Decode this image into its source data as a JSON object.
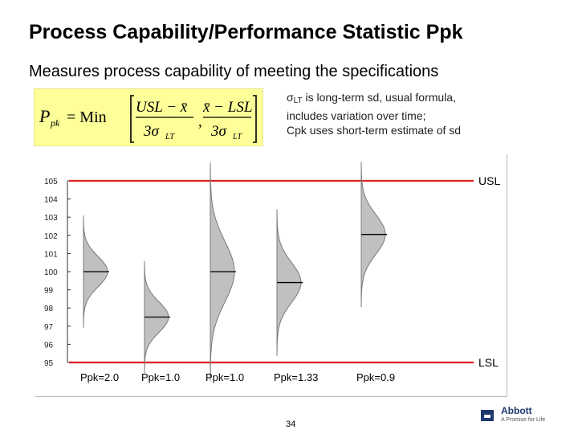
{
  "slide": {
    "title": "Process Capability/Performance Statistic Ppk",
    "subtitle": "Measures process capability of meeting the specifications",
    "note": {
      "line1_sigma": "σ",
      "line1_sub": "LT",
      "line1_rest": " is long-term sd, usual formula,",
      "line2": "includes variation over time;",
      "line3": "Cpk uses short-term estimate of sd"
    },
    "formula": {
      "lhs": "P",
      "lhs_sub": "pk",
      "eq": "= Min",
      "num1": "USL − x̄",
      "den1": "3σ",
      "den1_sub": "LT",
      "comma": ",",
      "num2": "x̄ − LSL",
      "den2": "3σ",
      "den2_sub": "LT"
    },
    "page_number": "34",
    "logo": {
      "name": "Abbott",
      "tagline": "A Promise for Life"
    }
  },
  "colors": {
    "spec_line": "#e02020",
    "curve_fill": "#c0c0c0",
    "curve_stroke": "#7a7a7a",
    "mean_line": "#000000",
    "formula_bg": "#ffff99",
    "logo": "#1d3a6e"
  },
  "chart_data": {
    "type": "area",
    "title": "",
    "xlabel": "",
    "ylabel": "",
    "ylim": [
      95,
      105
    ],
    "yticks": [
      "95",
      "96",
      "97",
      "98",
      "99",
      "100",
      "101",
      "102",
      "103",
      "104",
      "105"
    ],
    "spec_limits": [
      {
        "label": "USL",
        "value": 105
      },
      {
        "label": "LSL",
        "value": 95
      }
    ],
    "series": [
      {
        "name": "Ppk=2.0",
        "mean": 100,
        "sd": 0.833,
        "ppk": 2.0
      },
      {
        "name": "Ppk=1.0",
        "mean": 97.5,
        "sd": 0.833,
        "ppk": 1.0
      },
      {
        "name": "Ppk=1.0",
        "mean": 100,
        "sd": 1.667,
        "ppk": 1.0
      },
      {
        "name": "Ppk=1.33",
        "mean": 99.4,
        "sd": 1.1,
        "ppk": 1.33
      },
      {
        "name": "Ppk=0.9",
        "mean": 102.05,
        "sd": 1.093,
        "ppk": 0.9
      }
    ]
  }
}
